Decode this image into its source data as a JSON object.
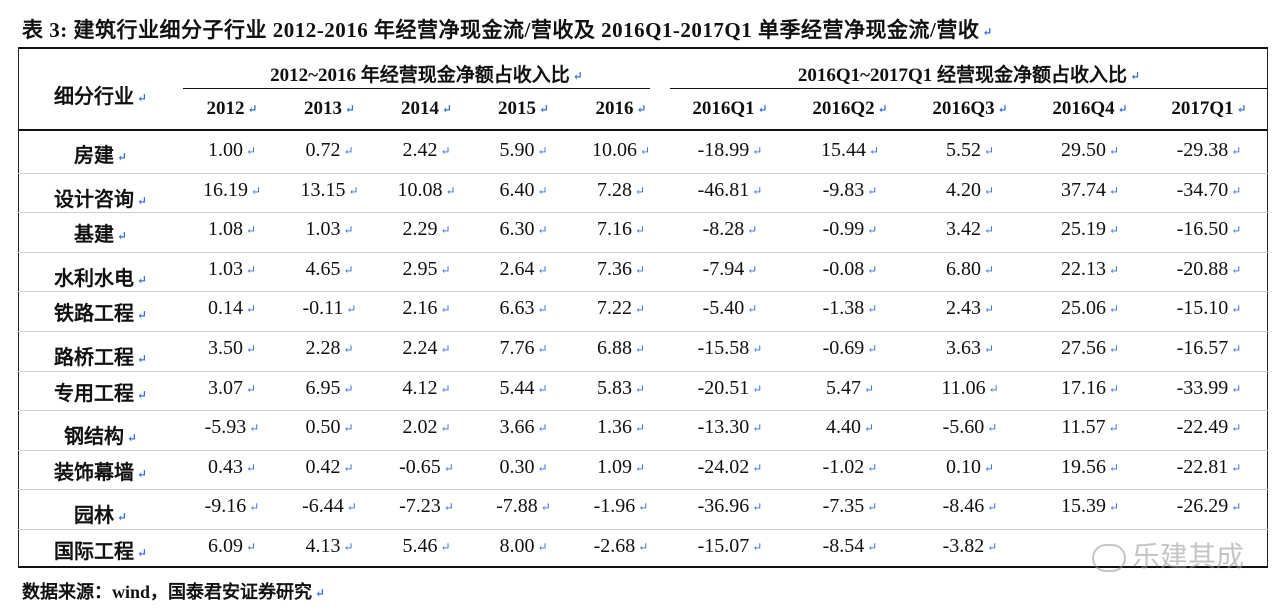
{
  "title": "表 3: 建筑行业细分子行业 2012-2016 年经营净现金流/营收及 2016Q1-2017Q1 单季经营净现金流/营收",
  "header": {
    "industry": "细分行业",
    "group_annual": "2012~2016 年经营现金净额占收入比",
    "group_quarterly": "2016Q1~2017Q1 经营现金净额占收入比",
    "columns": [
      "2012",
      "2013",
      "2014",
      "2015",
      "2016",
      "2016Q1",
      "2016Q2",
      "2016Q3",
      "2016Q4",
      "2017Q1"
    ]
  },
  "rows": [
    {
      "name": "房建",
      "values": [
        "1.00",
        "0.72",
        "2.42",
        "5.90",
        "10.06",
        "-18.99",
        "15.44",
        "5.52",
        "29.50",
        "-29.38"
      ]
    },
    {
      "name": "设计咨询",
      "values": [
        "16.19",
        "13.15",
        "10.08",
        "6.40",
        "7.28",
        "-46.81",
        "-9.83",
        "4.20",
        "37.74",
        "-34.70"
      ]
    },
    {
      "name": "基建",
      "values": [
        "1.08",
        "1.03",
        "2.29",
        "6.30",
        "7.16",
        "-8.28",
        "-0.99",
        "3.42",
        "25.19",
        "-16.50"
      ]
    },
    {
      "name": "水利水电",
      "values": [
        "1.03",
        "4.65",
        "2.95",
        "2.64",
        "7.36",
        "-7.94",
        "-0.08",
        "6.80",
        "22.13",
        "-20.88"
      ]
    },
    {
      "name": "铁路工程",
      "values": [
        "0.14",
        "-0.11",
        "2.16",
        "6.63",
        "7.22",
        "-5.40",
        "-1.38",
        "2.43",
        "25.06",
        "-15.10"
      ]
    },
    {
      "name": "路桥工程",
      "values": [
        "3.50",
        "2.28",
        "2.24",
        "7.76",
        "6.88",
        "-15.58",
        "-0.69",
        "3.63",
        "27.56",
        "-16.57"
      ]
    },
    {
      "name": "专用工程",
      "values": [
        "3.07",
        "6.95",
        "4.12",
        "5.44",
        "5.83",
        "-20.51",
        "5.47",
        "11.06",
        "17.16",
        "-33.99"
      ]
    },
    {
      "name": "钢结构",
      "values": [
        "-5.93",
        "0.50",
        "2.02",
        "3.66",
        "1.36",
        "-13.30",
        "4.40",
        "-5.60",
        "11.57",
        "-22.49"
      ]
    },
    {
      "name": "装饰幕墙",
      "values": [
        "0.43",
        "0.42",
        "-0.65",
        "0.30",
        "1.09",
        "-24.02",
        "-1.02",
        "0.10",
        "19.56",
        "-22.81"
      ]
    },
    {
      "name": "园林",
      "values": [
        "-9.16",
        "-6.44",
        "-7.23",
        "-7.88",
        "-1.96",
        "-36.96",
        "-7.35",
        "-8.46",
        "15.39",
        "-26.29"
      ]
    },
    {
      "name": "国际工程",
      "values": [
        "6.09",
        "4.13",
        "5.46",
        "8.00",
        "-2.68",
        "-15.07",
        "-8.54",
        "-3.82",
        "",
        ""
      ]
    }
  ],
  "source": "数据来源：wind，国泰君安证券研究",
  "watermark": "乐建其成",
  "mark_glyph": "↵"
}
